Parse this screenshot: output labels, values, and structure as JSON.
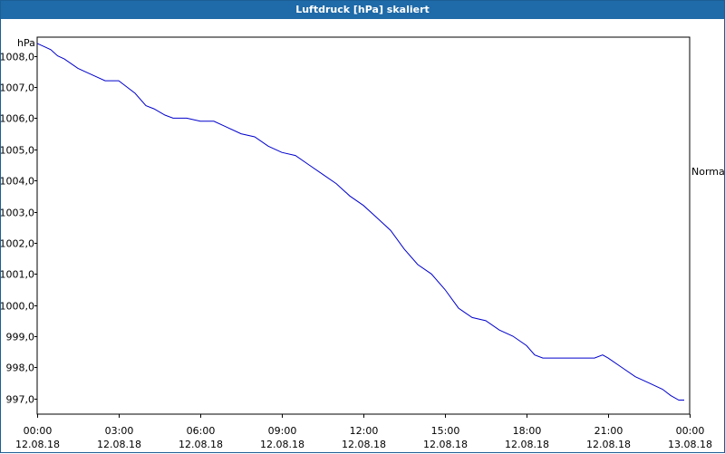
{
  "window": {
    "title": "Luftdruck [hPa] skaliert"
  },
  "chart_data": {
    "type": "line",
    "title": "Luftdruck [hPa] skaliert",
    "ylabel": "hPa",
    "xlabel": "",
    "ylim": [
      996.5,
      1008.6
    ],
    "xlim": [
      0,
      24
    ],
    "grid": true,
    "y_ticks": [
      {
        "value": 997.0,
        "label": "997,0"
      },
      {
        "value": 998.0,
        "label": "998,0"
      },
      {
        "value": 999.0,
        "label": "999,0"
      },
      {
        "value": 1000.0,
        "label": "1000,0"
      },
      {
        "value": 1001.0,
        "label": "1001,0"
      },
      {
        "value": 1002.0,
        "label": "1002,0"
      },
      {
        "value": 1003.0,
        "label": "1003,0"
      },
      {
        "value": 1004.0,
        "label": "1004,0"
      },
      {
        "value": 1005.0,
        "label": "1005,0"
      },
      {
        "value": 1006.0,
        "label": "1006,0"
      },
      {
        "value": 1007.0,
        "label": "1007,0"
      },
      {
        "value": 1008.0,
        "label": "1008,0"
      }
    ],
    "x_ticks": [
      {
        "value": 0,
        "time": "00:00",
        "date": "12.08.18"
      },
      {
        "value": 3,
        "time": "03:00",
        "date": "12.08.18"
      },
      {
        "value": 6,
        "time": "06:00",
        "date": "12.08.18"
      },
      {
        "value": 9,
        "time": "09:00",
        "date": "12.08.18"
      },
      {
        "value": 12,
        "time": "12:00",
        "date": "12.08.18"
      },
      {
        "value": 15,
        "time": "15:00",
        "date": "12.08.18"
      },
      {
        "value": 18,
        "time": "18:00",
        "date": "12.08.18"
      },
      {
        "value": 21,
        "time": "21:00",
        "date": "12.08.18"
      },
      {
        "value": 24,
        "time": "00:00",
        "date": "13.08.18"
      }
    ],
    "series": [
      {
        "name": "Normal",
        "color": "#0000cc",
        "x": [
          0,
          0.25,
          0.5,
          0.75,
          1.0,
          1.5,
          2.0,
          2.5,
          3.0,
          3.3,
          3.6,
          4.0,
          4.3,
          4.7,
          5.0,
          5.5,
          6.0,
          6.5,
          7.0,
          7.5,
          8.0,
          8.5,
          9.0,
          9.5,
          10.0,
          10.5,
          11.0,
          11.5,
          12.0,
          12.5,
          13.0,
          13.5,
          14.0,
          14.5,
          15.0,
          15.5,
          16.0,
          16.5,
          17.0,
          17.5,
          18.0,
          18.3,
          18.6,
          19.0,
          19.5,
          20.0,
          20.5,
          20.8,
          21.0,
          21.5,
          22.0,
          22.5,
          23.0,
          23.3,
          23.6,
          23.8
        ],
        "y": [
          1008.4,
          1008.3,
          1008.2,
          1008.0,
          1007.9,
          1007.6,
          1007.4,
          1007.2,
          1007.2,
          1007.0,
          1006.8,
          1006.4,
          1006.3,
          1006.1,
          1006.0,
          1006.0,
          1005.9,
          1005.9,
          1005.7,
          1005.5,
          1005.4,
          1005.1,
          1004.9,
          1004.8,
          1004.5,
          1004.2,
          1003.9,
          1003.5,
          1003.2,
          1002.8,
          1002.4,
          1001.8,
          1001.3,
          1001.0,
          1000.5,
          999.9,
          999.6,
          999.5,
          999.2,
          999.0,
          998.7,
          998.4,
          998.3,
          998.3,
          998.3,
          998.3,
          998.3,
          998.4,
          998.3,
          998.0,
          997.7,
          997.5,
          997.3,
          997.1,
          996.95,
          996.95
        ]
      }
    ]
  }
}
